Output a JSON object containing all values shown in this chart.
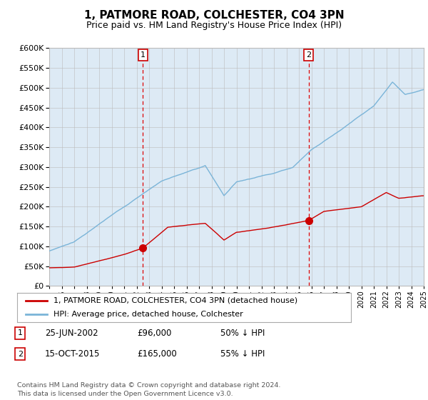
{
  "title": "1, PATMORE ROAD, COLCHESTER, CO4 3PN",
  "subtitle": "Price paid vs. HM Land Registry's House Price Index (HPI)",
  "legend_line1": "1, PATMORE ROAD, COLCHESTER, CO4 3PN (detached house)",
  "legend_line2": "HPI: Average price, detached house, Colchester",
  "annotation1_date": "25-JUN-2002",
  "annotation1_price": "£96,000",
  "annotation1_pct": "50% ↓ HPI",
  "annotation2_date": "15-OCT-2015",
  "annotation2_price": "£165,000",
  "annotation2_pct": "55% ↓ HPI",
  "footer": "Contains HM Land Registry data © Crown copyright and database right 2024.\nThis data is licensed under the Open Government Licence v3.0.",
  "hpi_color": "#7ab4d8",
  "price_color": "#cc0000",
  "bg_color": "#ddeaf5",
  "grid_color": "#bbbbbb",
  "vline_color": "#dd0000",
  "ylim": [
    0,
    600000
  ],
  "yticks": [
    0,
    50000,
    100000,
    150000,
    200000,
    250000,
    300000,
    350000,
    400000,
    450000,
    500000,
    550000,
    600000
  ],
  "xstart_year": 1995,
  "xend_year": 2025,
  "sale1_year": 2002.5,
  "sale1_value": 96000,
  "sale2_year": 2015.79,
  "sale2_value": 165000
}
